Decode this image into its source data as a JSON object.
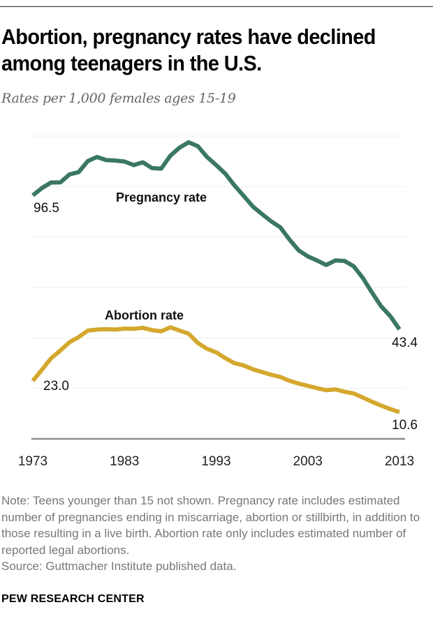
{
  "title": "Abortion, pregnancy rates have declined among teenagers in the U.S.",
  "subtitle": "Rates per 1,000 females ages 15-19",
  "note": "Note: Teens younger than 15 not shown. Pregnancy rate includes estimated number of pregnancies ending in miscarriage, abortion or stillbirth, in addition to those resulting in a live birth. Abortion rate only includes estimated number of reported legal abortions.",
  "source": "Source: Guttmacher Institute published data.",
  "brand": "PEW RESEARCH CENTER",
  "chart_data": {
    "type": "line",
    "x": [
      1973,
      1974,
      1975,
      1976,
      1977,
      1978,
      1979,
      1980,
      1981,
      1982,
      1983,
      1984,
      1985,
      1986,
      1987,
      1988,
      1989,
      1990,
      1991,
      1992,
      1993,
      1994,
      1995,
      1996,
      1997,
      1998,
      1999,
      2000,
      2001,
      2002,
      2003,
      2004,
      2005,
      2006,
      2007,
      2008,
      2009,
      2010,
      2011,
      2012,
      2013
    ],
    "xticks": [
      "1973",
      "1983",
      "1993",
      "2003",
      "2013"
    ],
    "ylim": [
      0,
      120
    ],
    "grid": true,
    "series": [
      {
        "name": "Pregnancy rate",
        "color": "#3a7764",
        "values": [
          96.5,
          99.4,
          101.6,
          101.6,
          104.8,
          105.7,
          110.1,
          111.7,
          110.5,
          110.3,
          109.9,
          108.5,
          109.6,
          107.3,
          107.1,
          112.2,
          115.4,
          117.5,
          116.0,
          111.7,
          108.5,
          105.1,
          100.4,
          96.3,
          92.1,
          89.1,
          86.2,
          83.8,
          79.0,
          74.7,
          72.3,
          70.7,
          68.9,
          70.7,
          70.5,
          68.4,
          63.8,
          58.0,
          52.5,
          48.6,
          43.4
        ],
        "start_label": "96.5",
        "end_label": "43.4"
      },
      {
        "name": "Abortion rate",
        "color": "#d4a82e",
        "values": [
          23.0,
          27.4,
          32.0,
          35.0,
          38.3,
          40.3,
          42.9,
          43.3,
          43.5,
          43.3,
          43.7,
          43.6,
          44.0,
          43.1,
          42.6,
          44.2,
          42.9,
          41.7,
          38.0,
          35.7,
          34.3,
          32.0,
          30.0,
          29.1,
          27.6,
          26.5,
          25.4,
          24.5,
          23.0,
          21.9,
          21.0,
          20.1,
          19.3,
          19.6,
          18.7,
          18.0,
          16.4,
          14.7,
          13.2,
          11.8,
          10.6
        ],
        "start_label": "23.0",
        "end_label": "10.6"
      }
    ]
  }
}
